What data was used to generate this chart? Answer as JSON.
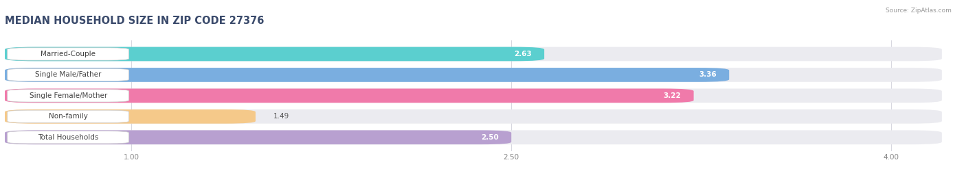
{
  "title": "MEDIAN HOUSEHOLD SIZE IN ZIP CODE 27376",
  "source": "Source: ZipAtlas.com",
  "categories": [
    "Married-Couple",
    "Single Male/Father",
    "Single Female/Mother",
    "Non-family",
    "Total Households"
  ],
  "values": [
    2.63,
    3.36,
    3.22,
    1.49,
    2.5
  ],
  "bar_colors": [
    "#5bcfcf",
    "#7aaee0",
    "#f07aaa",
    "#f5c98a",
    "#b8a0d0"
  ],
  "xlim_left": 0.5,
  "xlim_right": 4.2,
  "xticks": [
    1.0,
    2.5,
    4.0
  ],
  "xtick_labels": [
    "1.00",
    "2.50",
    "4.00"
  ],
  "title_fontsize": 10.5,
  "label_fontsize": 7.5,
  "value_fontsize": 7.5,
  "bg_color": "#ffffff",
  "bar_bg_color": "#ebebf0",
  "grid_color": "#d8d8e0",
  "value_inside_threshold": 1.8
}
